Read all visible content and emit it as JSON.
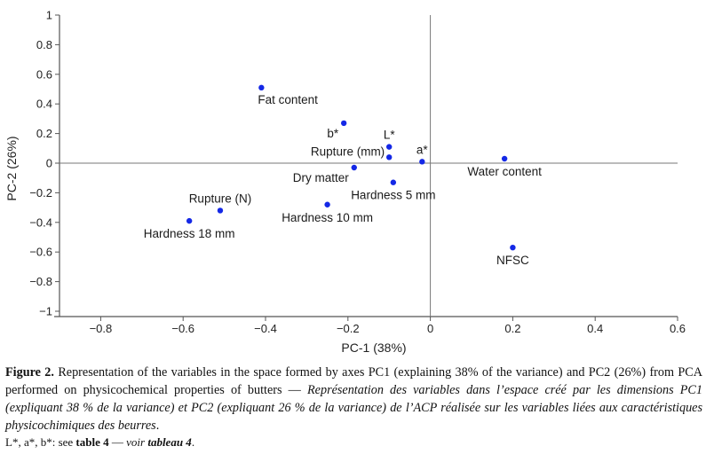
{
  "chart_data": {
    "type": "scatter",
    "xlabel": "PC-1 (38%)",
    "ylabel": "PC-2 (26%)",
    "xlim": [
      -0.9,
      0.6
    ],
    "ylim": [
      -1.0,
      1.0
    ],
    "xticks": [
      -0.8,
      -0.6,
      -0.4,
      -0.2,
      0,
      0.2,
      0.4,
      0.6
    ],
    "xtick_labels": [
      "−0.8",
      "−0.6",
      "−0.4",
      "−0.2",
      "0",
      "0.2",
      "0.4",
      "0.6"
    ],
    "yticks": [
      1,
      0.8,
      0.6,
      0.4,
      0.2,
      0,
      -0.2,
      -0.4,
      -0.6,
      -0.8,
      -1
    ],
    "ytick_labels": [
      "1",
      "0.8",
      "0.6",
      "0.4",
      "0.2",
      "0",
      "−0.2",
      "−0.4",
      "−0.6",
      "−0.8",
      "−1"
    ],
    "grid": false,
    "point_color": "#1428e6",
    "points": [
      {
        "label": "Fat content",
        "x": -0.41,
        "y": 0.51,
        "label_pos": "below-right"
      },
      {
        "label": "b*",
        "x": -0.21,
        "y": 0.27,
        "label_pos": "below-left"
      },
      {
        "label": "L*",
        "x": -0.1,
        "y": 0.11,
        "label_pos": "above"
      },
      {
        "label": "a*",
        "x": -0.02,
        "y": 0.01,
        "label_pos": "above"
      },
      {
        "label": "Rupture (mm)",
        "x": -0.1,
        "y": 0.04,
        "label_pos": "left"
      },
      {
        "label": "Dry matter",
        "x": -0.185,
        "y": -0.03,
        "label_pos": "below-left"
      },
      {
        "label": "Hardness 5 mm",
        "x": -0.09,
        "y": -0.13,
        "label_pos": "below"
      },
      {
        "label": "Water content",
        "x": 0.18,
        "y": 0.03,
        "label_pos": "below"
      },
      {
        "label": "Hardness 10 mm",
        "x": -0.25,
        "y": -0.28,
        "label_pos": "below"
      },
      {
        "label": "Rupture (N)",
        "x": -0.51,
        "y": -0.32,
        "label_pos": "above"
      },
      {
        "label": "Hardness 18 mm",
        "x": -0.585,
        "y": -0.39,
        "label_pos": "below"
      },
      {
        "label": "NFSC",
        "x": 0.2,
        "y": -0.57,
        "label_pos": "below"
      }
    ]
  },
  "caption": {
    "figure_label": "Figure 2.",
    "text_en": " Representation of the variables in the space formed by axes PC1 (explaining 38% of the variance) and PC2 (26%) from PCA performed on physicochemical properties of butters — ",
    "text_fr": "Représentation des variables dans l’espace créé par les dimensions PC1 (expliquant 38 % de la variance) et PC2 (expliquant 26 % de la variance) de l’ACP réalisée sur les variables liées aux caractéristiques physicochimiques des beurres",
    "end": "."
  },
  "note": {
    "prefix": "L*, a*, b*: see ",
    "ref_en": "table 4",
    "dash": " — ",
    "ref_fr_plain": "voir ",
    "ref_fr_bold": "tableau 4",
    "end": "."
  }
}
